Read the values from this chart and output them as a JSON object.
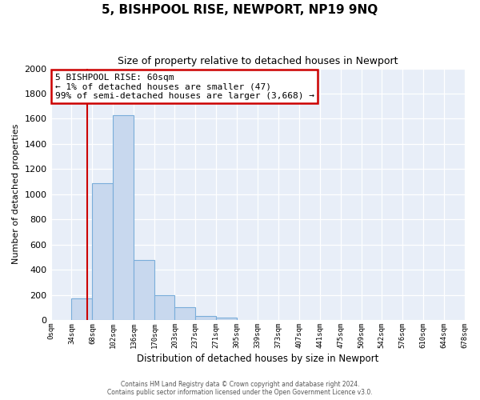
{
  "title": "5, BISHPOOL RISE, NEWPORT, NP19 9NQ",
  "subtitle": "Size of property relative to detached houses in Newport",
  "xlabel": "Distribution of detached houses by size in Newport",
  "ylabel": "Number of detached properties",
  "bar_color": "#c8d8ee",
  "bar_edge_color": "#7aadda",
  "bar_heights": [
    0,
    170,
    1090,
    1630,
    480,
    200,
    100,
    35,
    20,
    0,
    0,
    0,
    0,
    0,
    0,
    0,
    0,
    0,
    0,
    0
  ],
  "bin_edges": [
    0,
    34,
    68,
    102,
    136,
    170,
    203,
    237,
    271,
    305,
    339,
    373,
    407,
    441,
    475,
    509,
    542,
    576,
    610,
    644,
    678
  ],
  "red_line_x": 60,
  "red_line_color": "#cc0000",
  "ylim": [
    0,
    2000
  ],
  "yticks": [
    0,
    200,
    400,
    600,
    800,
    1000,
    1200,
    1400,
    1600,
    1800,
    2000
  ],
  "xtick_labels": [
    "0sqm",
    "34sqm",
    "68sqm",
    "102sqm",
    "136sqm",
    "170sqm",
    "203sqm",
    "237sqm",
    "271sqm",
    "305sqm",
    "339sqm",
    "373sqm",
    "407sqm",
    "441sqm",
    "475sqm",
    "509sqm",
    "542sqm",
    "576sqm",
    "610sqm",
    "644sqm",
    "678sqm"
  ],
  "annotation_line1": "5 BISHPOOL RISE: 60sqm",
  "annotation_line2": "← 1% of detached houses are smaller (47)",
  "annotation_line3": "99% of semi-detached houses are larger (3,668) →",
  "annotation_box_color": "#ffffff",
  "annotation_box_edge": "#cc0000",
  "footnote1": "Contains HM Land Registry data © Crown copyright and database right 2024.",
  "footnote2": "Contains public sector information licensed under the Open Government Licence v3.0.",
  "figure_bg": "#ffffff",
  "plot_bg": "#e8eef8",
  "grid_color": "#ffffff",
  "title_fontsize": 11,
  "subtitle_fontsize": 9
}
